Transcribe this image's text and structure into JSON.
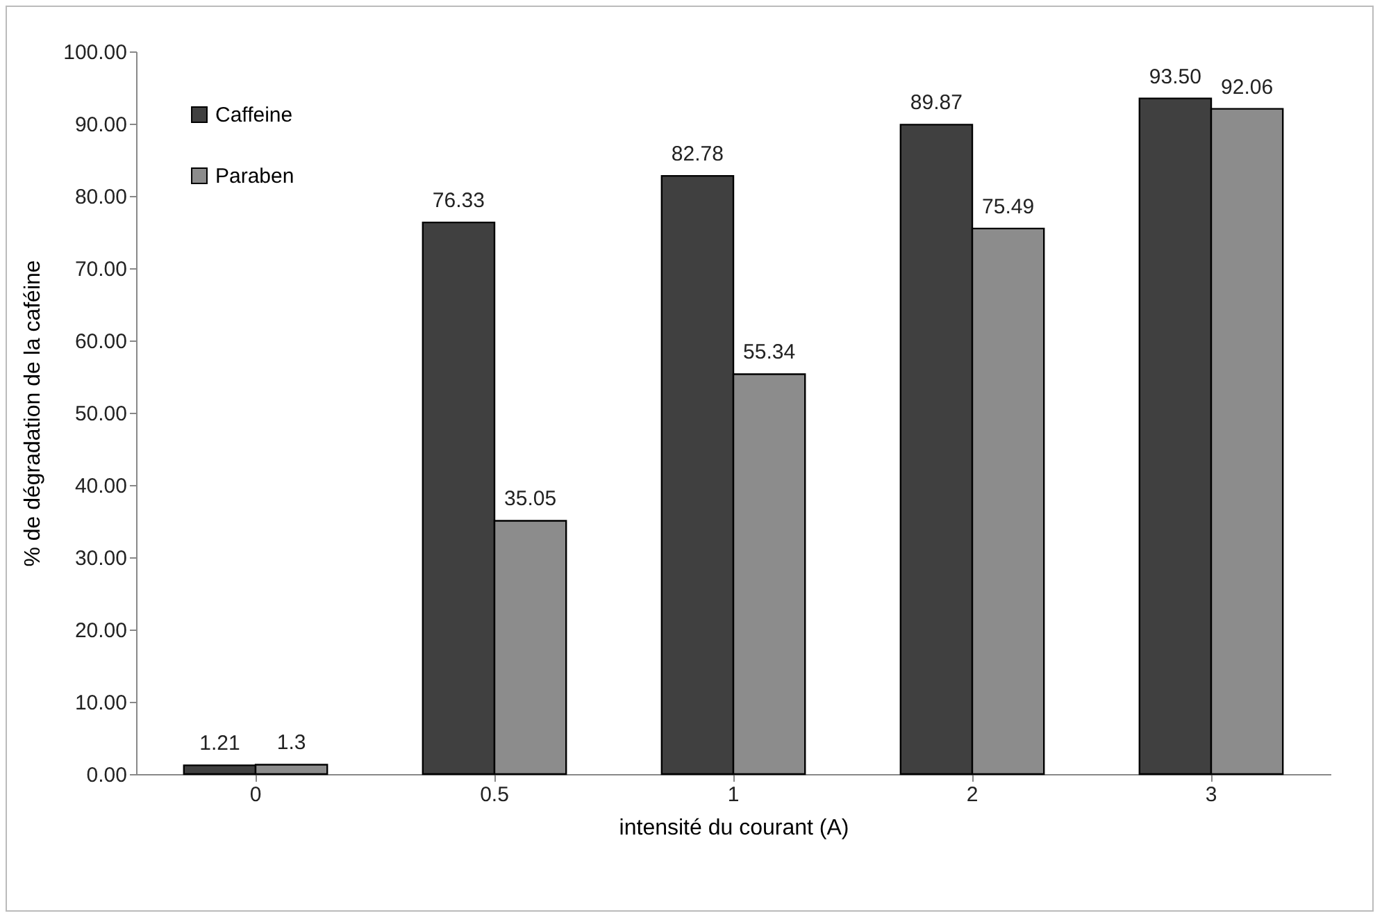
{
  "chart_data": {
    "type": "bar",
    "xlabel": "intensité du courant (A)",
    "ylabel": "% de dégradation de la caféine",
    "categories": [
      "0",
      "0.5",
      "1",
      "2",
      "3"
    ],
    "series": [
      {
        "name": "Caffeine",
        "color": "#404040",
        "values": [
          1.21,
          76.33,
          82.78,
          89.87,
          93.5
        ],
        "value_labels": [
          "1.21",
          "76.33",
          "82.78",
          "89.87",
          "93.50"
        ]
      },
      {
        "name": "Paraben",
        "color": "#8c8c8c",
        "values": [
          1.3,
          35.05,
          55.34,
          75.49,
          92.06
        ],
        "value_labels": [
          "1.3",
          "35.05",
          "55.34",
          "75.49",
          "92.06"
        ]
      }
    ],
    "ylim": [
      0,
      100
    ],
    "yticks": [
      {
        "value": 0,
        "label": "0.00"
      },
      {
        "value": 10,
        "label": "10.00"
      },
      {
        "value": 20,
        "label": "20.00"
      },
      {
        "value": 30,
        "label": "30.00"
      },
      {
        "value": 40,
        "label": "40.00"
      },
      {
        "value": 50,
        "label": "50.00"
      },
      {
        "value": 60,
        "label": "60.00"
      },
      {
        "value": 70,
        "label": "70.00"
      },
      {
        "value": 80,
        "label": "80.00"
      },
      {
        "value": 90,
        "label": "90.00"
      },
      {
        "value": 100,
        "label": "100.00"
      }
    ],
    "grid": false,
    "legend": "top left"
  }
}
